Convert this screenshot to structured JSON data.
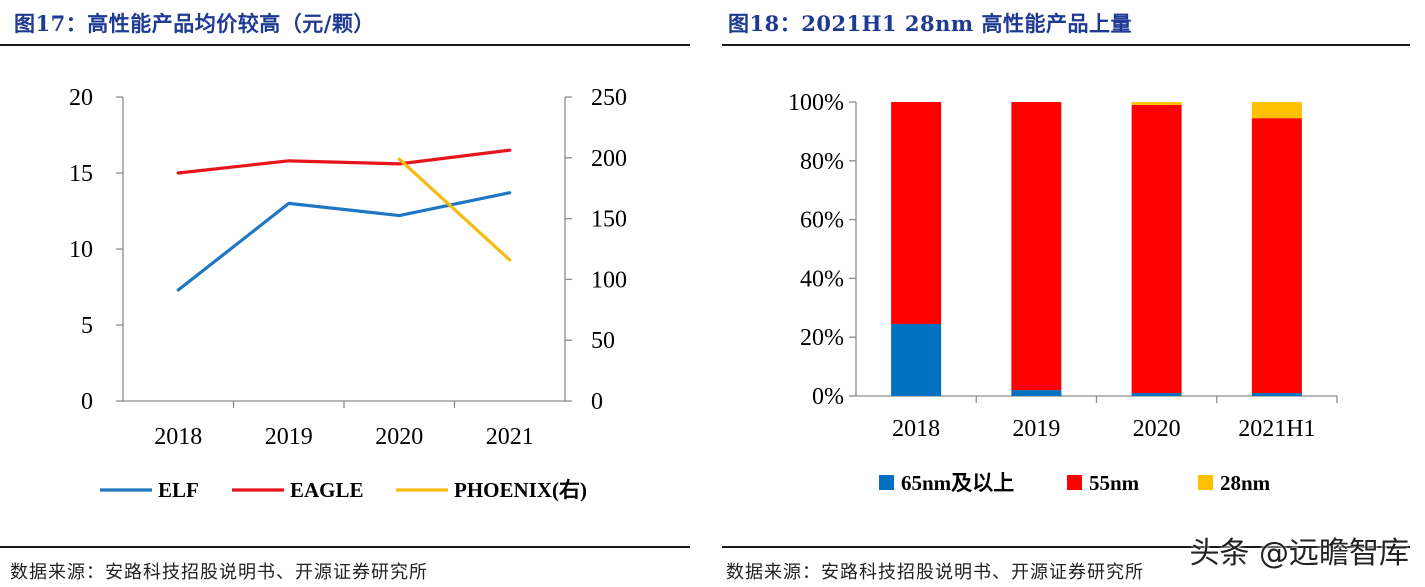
{
  "left": {
    "title": "图17：高性能产品均价较高（元/颗）",
    "source": "数据来源：安路科技招股说明书、开源证券研究所"
  },
  "right": {
    "title": "图18：2021H1 28nm 高性能产品上量",
    "source": "数据来源：安路科技招股说明书、开源证券研究所"
  },
  "watermark": "头条 @远瞻智库",
  "chart_data": [
    {
      "type": "line",
      "title": "高性能产品均价较高（元/颗）",
      "categories": [
        "2018",
        "2019",
        "2020",
        "2021"
      ],
      "y_left": {
        "min": 0,
        "max": 20,
        "ticks": [
          "0",
          "5",
          "10",
          "15",
          "20"
        ]
      },
      "y_right": {
        "min": 0,
        "max": 250,
        "ticks": [
          "0",
          "50",
          "100",
          "150",
          "200",
          "250"
        ]
      },
      "series": [
        {
          "name": "ELF",
          "axis": "left",
          "color": "#1f77c4",
          "values": [
            7.3,
            13.0,
            12.2,
            13.7
          ]
        },
        {
          "name": "EAGLE",
          "axis": "left",
          "color": "#e8141c",
          "values": [
            15.0,
            15.8,
            15.6,
            16.5
          ]
        },
        {
          "name": "PHOENIX(右)",
          "axis": "right",
          "color": "#f5bb10",
          "values": [
            null,
            null,
            199,
            116
          ]
        }
      ]
    },
    {
      "type": "bar",
      "stacked": true,
      "title": "2021H1 28nm 高性能产品上量",
      "categories": [
        "2018",
        "2019",
        "2020",
        "2021H1"
      ],
      "y": {
        "min": 0,
        "max": 100,
        "ticks": [
          "0%",
          "20%",
          "40%",
          "60%",
          "80%",
          "100%"
        ]
      },
      "series": [
        {
          "name": "65nm及以上",
          "color": "#0070c0",
          "values": [
            24.5,
            2,
            1,
            1
          ]
        },
        {
          "name": "55nm",
          "color": "#ff0000",
          "values": [
            75.5,
            98,
            98,
            93.5
          ]
        },
        {
          "name": "28nm",
          "color": "#ffc000",
          "values": [
            0,
            0,
            1,
            5.5
          ]
        }
      ]
    }
  ]
}
